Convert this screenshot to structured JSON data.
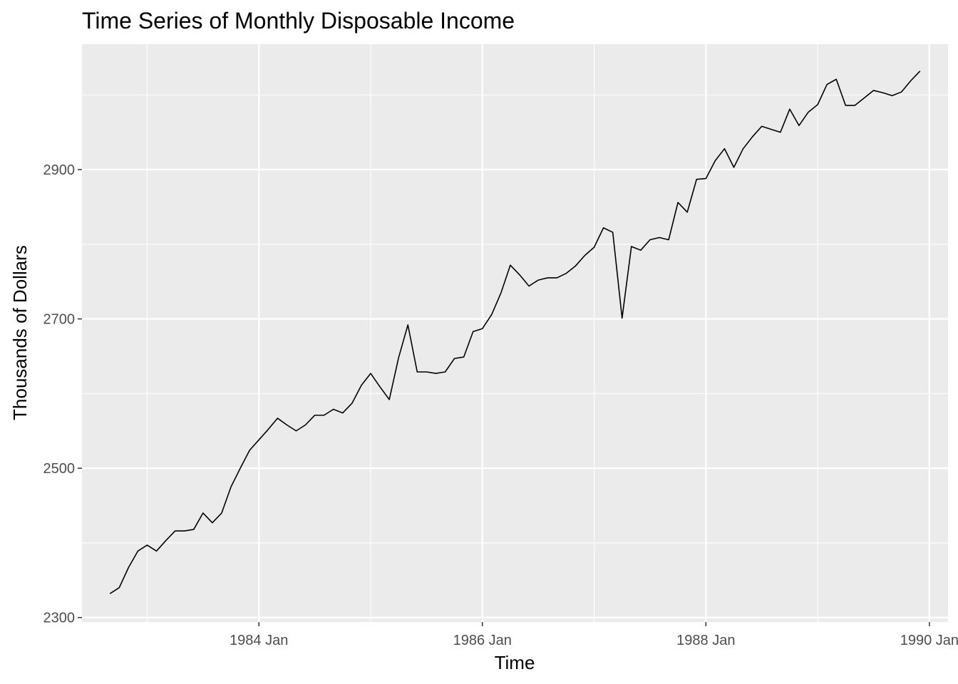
{
  "chart_data": {
    "type": "line",
    "title": "Time Series of Monthly Disposable Income",
    "xlabel": "Time",
    "ylabel": "Thousands of Dollars",
    "x_start": "1982 Sep",
    "x_frequency": "monthly",
    "x_tick_labels": [
      "1984 Jan",
      "1986 Jan",
      "1988 Jan",
      "1990 Jan"
    ],
    "y_ticks": [
      2300,
      2500,
      2700,
      2900
    ],
    "ylim": [
      2294,
      3068
    ],
    "xlim": [
      "1982 Jun",
      "1990 Mar"
    ],
    "grid": true,
    "legend": "none",
    "series": [
      {
        "line_color": "#000000",
        "values": [
          2332,
          2340,
          2367,
          2389,
          2397,
          2389,
          2403,
          2416,
          2416,
          2418,
          2440,
          2427,
          2440,
          2475,
          2500,
          2524,
          2538,
          2552,
          2567,
          2558,
          2550,
          2558,
          2571,
          2571,
          2579,
          2574,
          2587,
          2611,
          2627,
          2609,
          2592,
          2648,
          2692,
          2629,
          2629,
          2627,
          2629,
          2647,
          2649,
          2683,
          2687,
          2706,
          2735,
          2772,
          2759,
          2744,
          2752,
          2755,
          2755,
          2761,
          2771,
          2785,
          2796,
          2822,
          2816,
          2701,
          2797,
          2792,
          2806,
          2809,
          2806,
          2856,
          2843,
          2887,
          2888,
          2912,
          2928,
          2903,
          2928,
          2944,
          2958,
          2954,
          2950,
          2981,
          2959,
          2977,
          2987,
          3014,
          3021,
          2986,
          2986,
          2996,
          3006,
          3003,
          2999,
          3004,
          3019,
          3032
        ]
      }
    ]
  }
}
